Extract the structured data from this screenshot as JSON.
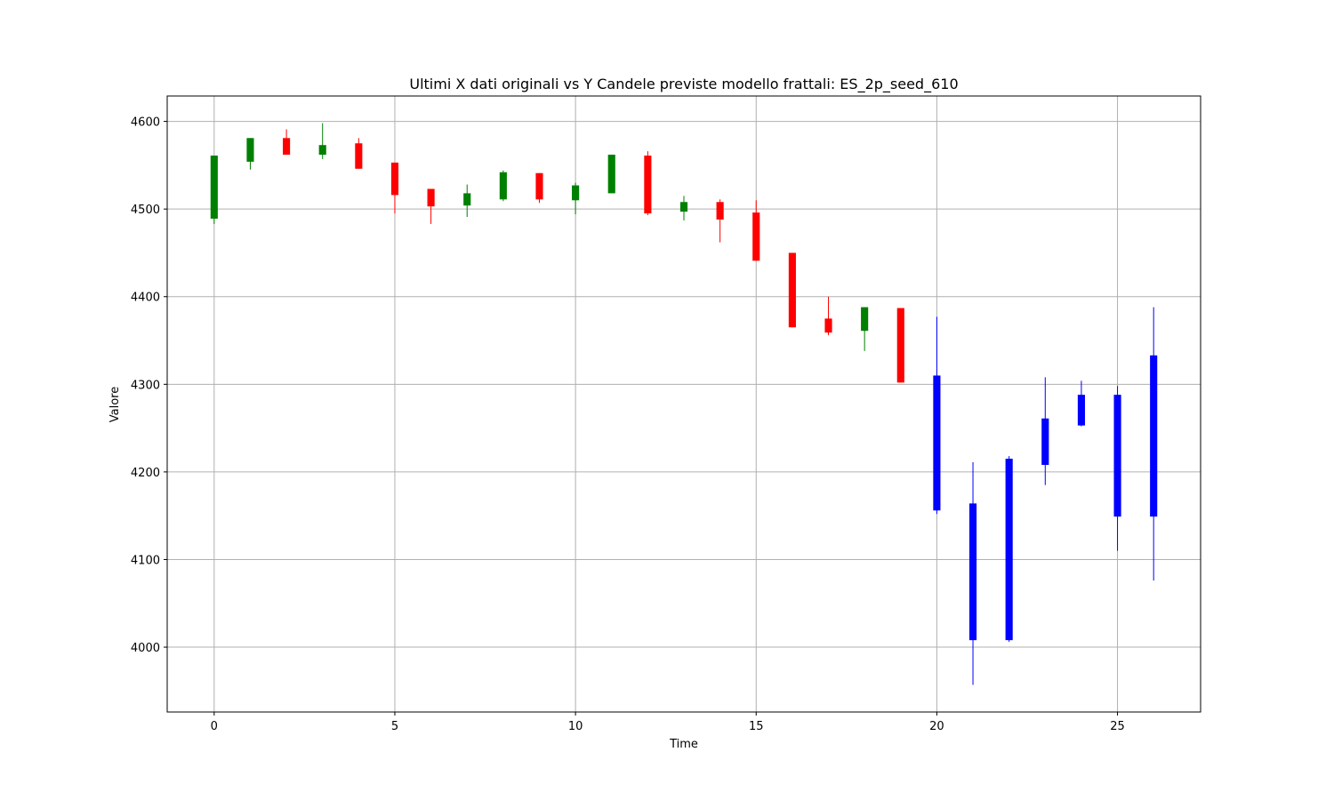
{
  "chart_data": {
    "type": "candlestick",
    "title": "Ultimi X dati originali vs Y Candele previste modello frattali: ES_2p_seed_610",
    "xlabel": "Time",
    "ylabel": "Valore",
    "x": [
      0,
      1,
      2,
      3,
      4,
      5,
      6,
      7,
      8,
      9,
      10,
      11,
      12,
      13,
      14,
      15,
      16,
      17,
      18,
      19,
      20,
      21,
      22,
      23,
      24,
      25,
      26
    ],
    "open": [
      4489,
      4554,
      4581,
      4562,
      4575,
      4553,
      4523,
      4504,
      4511,
      4541,
      4510,
      4518,
      4561,
      4497,
      4508,
      4496,
      4450,
      4375,
      4361,
      4387,
      4310,
      4164,
      4215,
      4261,
      4288,
      4288,
      4333
    ],
    "high": [
      4561,
      4581,
      4591,
      4598,
      4581,
      4553,
      4523,
      4528,
      4544,
      4541,
      4530,
      4562,
      4566,
      4515,
      4511,
      4510,
      4450,
      4400,
      4388,
      4387,
      4377,
      4211,
      4218,
      4308,
      4304,
      4298,
      4388
    ],
    "low": [
      4483,
      4545,
      4562,
      4557,
      4546,
      4495,
      4483,
      4491,
      4509,
      4507,
      4494,
      4518,
      4493,
      4487,
      4462,
      4441,
      4365,
      4356,
      4338,
      4302,
      4152,
      3957,
      4006,
      4185,
      4252,
      4110,
      4076
    ],
    "close": [
      4561,
      4581,
      4562,
      4573,
      4546,
      4516,
      4503,
      4518,
      4542,
      4511,
      4527,
      4562,
      4495,
      4508,
      4488,
      4441,
      4365,
      4359,
      4388,
      4302,
      4156,
      4008,
      4008,
      4208,
      4253,
      4149,
      4149
    ],
    "colors": [
      "green",
      "green",
      "red",
      "green",
      "red",
      "red",
      "red",
      "green",
      "green",
      "red",
      "green",
      "green",
      "red",
      "green",
      "red",
      "red",
      "red",
      "red",
      "green",
      "red",
      "blue",
      "blue",
      "blue",
      "blue",
      "blue",
      "blue",
      "blue"
    ],
    "xlim": [
      -1.3,
      27.3
    ],
    "ylim": [
      3926,
      4629
    ],
    "xticks": [
      0,
      5,
      10,
      15,
      20,
      25
    ],
    "yticks": [
      4000,
      4100,
      4200,
      4300,
      4400,
      4500,
      4600
    ],
    "grid": true
  }
}
